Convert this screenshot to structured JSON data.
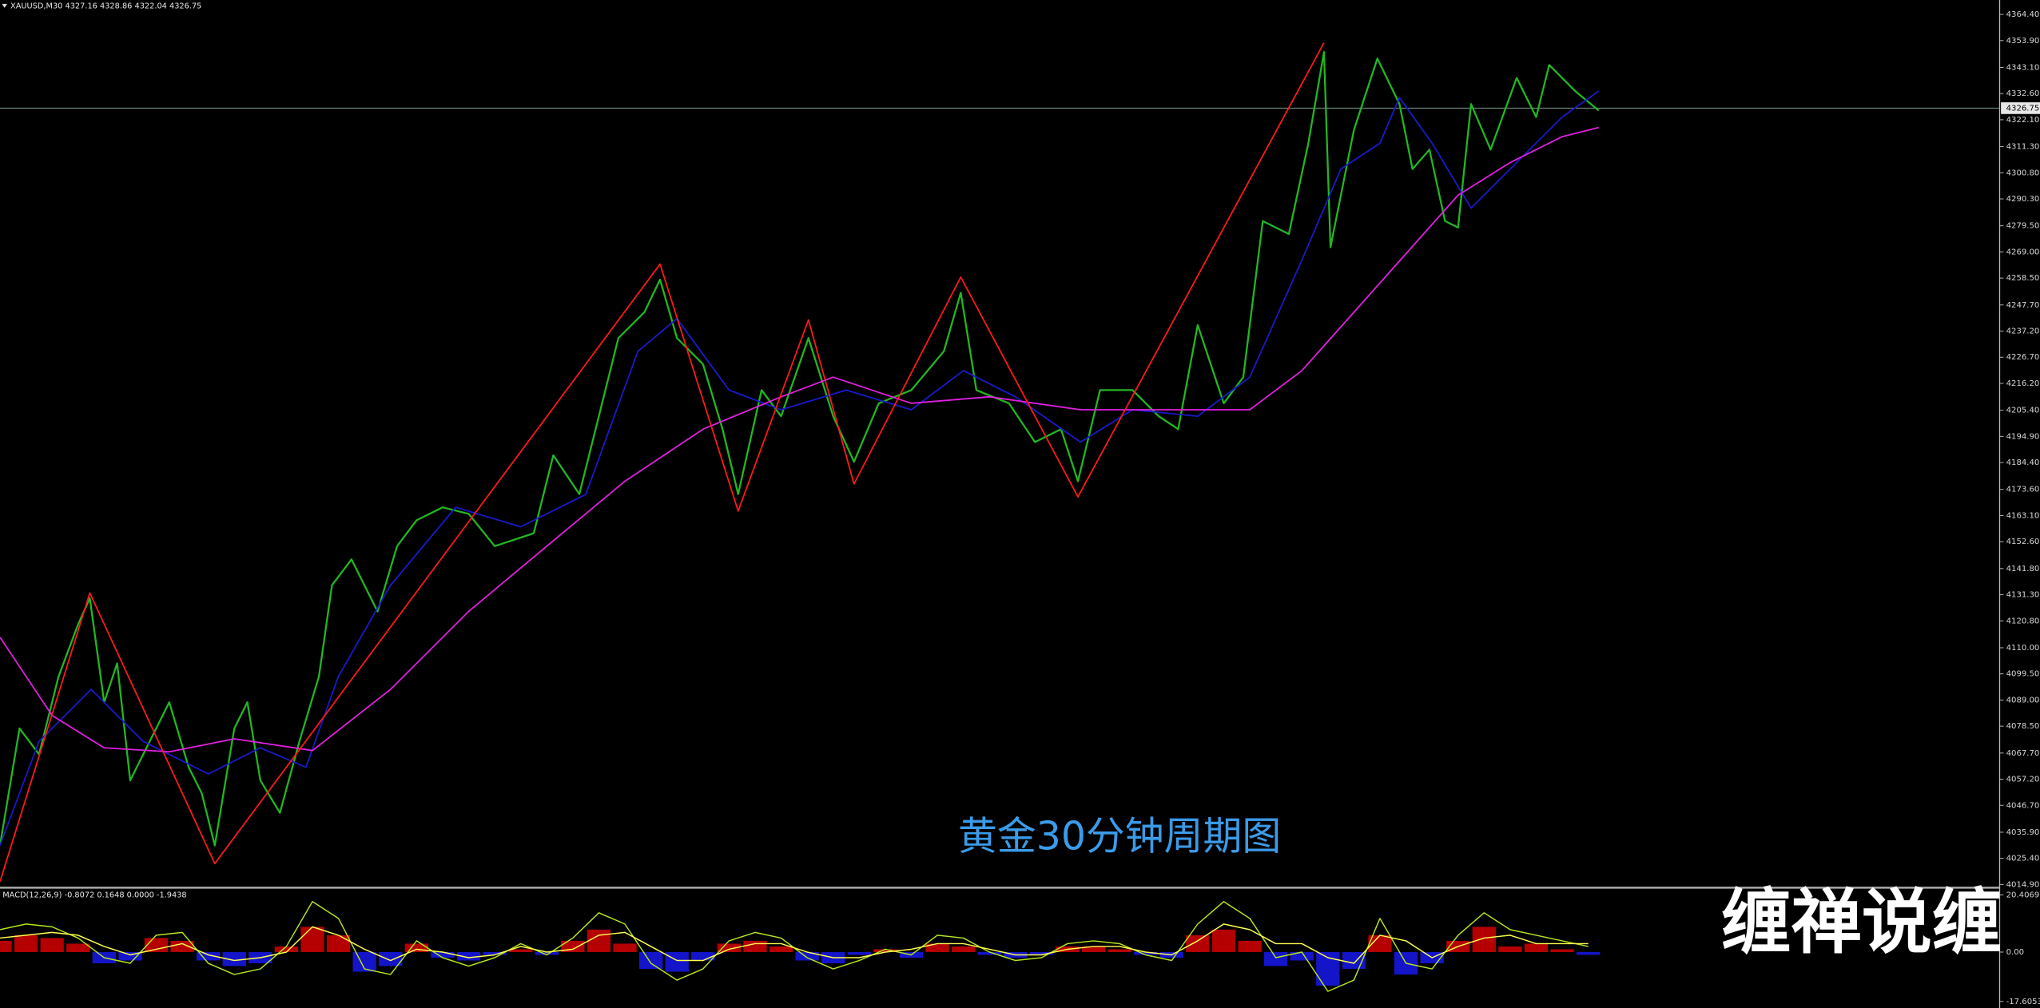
{
  "chart_data": [
    {
      "type": "line",
      "title": "XAUUSD,M30  4327.16 4328.86 4322.04 4326.75",
      "annotations": [
        "黄金30分钟周期图",
        "缠禅说缠"
      ],
      "last_price": 4326.75,
      "xlim": [
        0,
        1535
      ],
      "ylim": [
        4014.4,
        4370.2
      ],
      "yticks": [
        {
          "value": 4364.4,
          "label": "4364.40"
        },
        {
          "value": 4353.9,
          "label": "4353.90"
        },
        {
          "value": 4343.1,
          "label": "4343.10"
        },
        {
          "value": 4332.6,
          "label": "4332.60"
        },
        {
          "value": 4322.1,
          "label": "4322.10"
        },
        {
          "value": 4311.3,
          "label": "4311.30"
        },
        {
          "value": 4300.8,
          "label": "4300.80"
        },
        {
          "value": 4290.3,
          "label": "4290.30"
        },
        {
          "value": 4279.5,
          "label": "4279.50"
        },
        {
          "value": 4269,
          "label": "4269.00"
        },
        {
          "value": 4258.5,
          "label": "4258.50"
        },
        {
          "value": 4247.7,
          "label": "4247.70"
        },
        {
          "value": 4237.2,
          "label": "4237.20"
        },
        {
          "value": 4226.7,
          "label": "4226.70"
        },
        {
          "value": 4216.2,
          "label": "4216.20"
        },
        {
          "value": 4205.4,
          "label": "4205.40"
        },
        {
          "value": 4194.9,
          "label": "4194.90"
        },
        {
          "value": 4184.4,
          "label": "4184.40"
        },
        {
          "value": 4173.6,
          "label": "4173.60"
        },
        {
          "value": 4163.1,
          "label": "4163.10"
        },
        {
          "value": 4152.6,
          "label": "4152.60"
        },
        {
          "value": 4141.8,
          "label": "4141.80"
        },
        {
          "value": 4131.3,
          "label": "4131.30"
        },
        {
          "value": 4120.8,
          "label": "4120.80"
        },
        {
          "value": 4110,
          "label": "4110.00"
        },
        {
          "value": 4099.5,
          "label": "4099.50"
        },
        {
          "value": 4089,
          "label": "4089.00"
        },
        {
          "value": 4078.5,
          "label": "4078.50"
        },
        {
          "value": 4067.7,
          "label": "4067.70"
        },
        {
          "value": 4057.2,
          "label": "4057.20"
        },
        {
          "value": 4046.7,
          "label": "4046.70"
        },
        {
          "value": 4035.9,
          "label": "4035.90"
        },
        {
          "value": 4025.4,
          "label": "4025.40"
        },
        {
          "value": 4014.9,
          "label": "4014.90"
        }
      ],
      "series": [
        {
          "color": "#22b722",
          "x": [
            0,
            15,
            30,
            45,
            60,
            69,
            80,
            90,
            100,
            115,
            130,
            145,
            155,
            165,
            180,
            190,
            200,
            215,
            230,
            245,
            255,
            270,
            290,
            305,
            320,
            340,
            360,
            380,
            410,
            425,
            445,
            460,
            475,
            495,
            507,
            520,
            540,
            555,
            567,
            585,
            600,
            621,
            640,
            656,
            675,
            700,
            725,
            738,
            750,
            775,
            795,
            815,
            828,
            845,
            870,
            890,
            905,
            920,
            940,
            955,
            970,
            990,
            1005,
            1017,
            1022,
            1040,
            1058,
            1075,
            1085,
            1098,
            1110,
            1120,
            1130,
            1145,
            1165,
            1180,
            1190,
            1210,
            1228
          ],
          "values": [
            4030.6,
            4077.6,
            4067.2,
            4098.5,
            4119.4,
            4129.9,
            4088.1,
            4103.7,
            4056.7,
            4072.4,
            4088.1,
            4061.9,
            4051.5,
            4030.6,
            4077.6,
            4088.1,
            4056.7,
            4043.7,
            4072.4,
            4098.5,
            4135.1,
            4145.5,
            4124.6,
            4150.8,
            4161.2,
            4166.4,
            4163.8,
            4150.8,
            4156.0,
            4187.3,
            4171.7,
            4203.0,
            4234.4,
            4244.8,
            4257.9,
            4234.4,
            4223.9,
            4197.8,
            4171.7,
            4213.5,
            4203.0,
            4234.4,
            4203.0,
            4184.7,
            4208.2,
            4213.5,
            4229.1,
            4252.6,
            4213.5,
            4208.2,
            4192.6,
            4197.8,
            4176.9,
            4213.5,
            4213.5,
            4203.0,
            4197.8,
            4239.6,
            4208.2,
            4218.7,
            4281.4,
            4276.2,
            4312.7,
            4349.3,
            4270.9,
            4318.0,
            4346.7,
            4328.4,
            4302.3,
            4310.1,
            4281.4,
            4278.8,
            4328.4,
            4310.1,
            4338.9,
            4323.2,
            4344.1,
            4333.6,
            4325.8
          ]
        },
        {
          "color": "#1a1acc",
          "x": [
            0,
            30,
            70,
            110,
            160,
            200,
            235,
            260,
            300,
            350,
            400,
            450,
            490,
            520,
            560,
            600,
            650,
            700,
            740,
            780,
            830,
            870,
            920,
            960,
            1000,
            1030,
            1060,
            1075,
            1100,
            1130,
            1160,
            1200,
            1228
          ],
          "values": [
            4030.6,
            4072.4,
            4093.3,
            4072.4,
            4059.3,
            4069.8,
            4062.0,
            4098.5,
            4135.1,
            4166.4,
            4158.6,
            4171.6,
            4229.1,
            4242.2,
            4213.5,
            4205.6,
            4213.5,
            4205.6,
            4221.3,
            4210.8,
            4192.6,
            4205.6,
            4203.0,
            4218.7,
            4265.7,
            4302.3,
            4312.7,
            4331.0,
            4312.7,
            4286.6,
            4302.3,
            4323.2,
            4333.6
          ]
        },
        {
          "color": "#e020e0",
          "x": [
            0,
            40,
            80,
            130,
            180,
            240,
            300,
            360,
            420,
            480,
            540,
            600,
            640,
            700,
            760,
            830,
            900,
            960,
            1000,
            1040,
            1080,
            1120,
            1160,
            1200,
            1228
          ],
          "values": [
            4114.2,
            4082.8,
            4069.8,
            4068.2,
            4073.4,
            4068.7,
            4093.3,
            4124.6,
            4150.8,
            4176.9,
            4197.8,
            4210.8,
            4218.7,
            4208.2,
            4210.8,
            4205.6,
            4205.6,
            4205.6,
            4221.3,
            4244.8,
            4268.3,
            4291.8,
            4304.9,
            4315.3,
            4319.0
          ]
        },
        {
          "color": "#ff1a1a",
          "x": [
            0,
            69,
            165,
            507,
            567,
            621,
            656,
            738,
            828,
            1017
          ],
          "values": [
            4016.0,
            4132.0,
            4023.3,
            4264.1,
            4164.9,
            4241.7,
            4175.8,
            4258.9,
            4170.6,
            4353.0
          ]
        }
      ]
    },
    {
      "type": "macd",
      "title": "MACD(12,26,9) -0.8072 0.1648 0.0000 -1.9438",
      "xlim": [
        0,
        1535
      ],
      "ylim": [
        -19.48,
        22.26
      ],
      "yticks": [
        20.4069,
        {
          "value": 0,
          "label": "0.00"
        },
        -17.6053
      ],
      "x": [
        0,
        20,
        40,
        60,
        80,
        100,
        120,
        140,
        160,
        180,
        200,
        220,
        240,
        260,
        280,
        300,
        320,
        340,
        360,
        380,
        400,
        420,
        440,
        460,
        480,
        500,
        520,
        540,
        560,
        580,
        600,
        620,
        640,
        660,
        680,
        700,
        720,
        740,
        760,
        780,
        800,
        820,
        840,
        860,
        880,
        900,
        920,
        940,
        960,
        980,
        1000,
        1020,
        1040,
        1060,
        1080,
        1100,
        1120,
        1140,
        1160,
        1180,
        1200,
        1220
      ],
      "series": [
        {
          "type": "bar",
          "color": "#b40000",
          "negative_color": "#1414c8",
          "values": [
            4,
            6,
            5,
            3,
            -4,
            -3,
            5,
            4,
            -3,
            -5,
            -4,
            2,
            9,
            6,
            -7,
            -5,
            3,
            -2,
            -3,
            -1,
            1,
            -1,
            4,
            8,
            3,
            -6,
            -7,
            -3,
            3,
            4,
            2,
            -3,
            -4,
            -1,
            1,
            -2,
            3,
            2,
            -1,
            -2,
            -1,
            2,
            2,
            1,
            -1,
            -2,
            6,
            8,
            4,
            -5,
            -3,
            -12,
            -6,
            6,
            -8,
            -4,
            4,
            9,
            2,
            3,
            1,
            -1
          ]
        },
        {
          "type": "line",
          "color": "#b4e61e",
          "values": [
            8,
            10,
            9,
            5,
            -2,
            -4,
            6,
            7,
            -4,
            -8,
            -6,
            2,
            18,
            12,
            -6,
            -8,
            4,
            -2,
            -5,
            -2,
            3,
            -1,
            5,
            14,
            10,
            -4,
            -10,
            -6,
            4,
            7,
            5,
            -2,
            -6,
            -3,
            1,
            -1,
            6,
            5,
            0,
            -3,
            -2,
            3,
            4,
            3,
            -1,
            -3,
            10,
            18,
            12,
            -2,
            0,
            -14,
            -10,
            12,
            -4,
            -6,
            6,
            14,
            8,
            6,
            4,
            2
          ]
        },
        {
          "type": "line",
          "color": "#ffff50",
          "values": [
            5,
            6,
            7,
            6,
            2,
            -1,
            1,
            3,
            -1,
            -3,
            -2,
            0,
            9,
            6,
            1,
            -3,
            1,
            0,
            -2,
            -1,
            2,
            0,
            1,
            6,
            7,
            2,
            -3,
            -3,
            1,
            3,
            3,
            0,
            -2,
            -2,
            0,
            1,
            3,
            3,
            1,
            -1,
            -1,
            1,
            2,
            2,
            0,
            -1,
            4,
            10,
            8,
            3,
            3,
            -2,
            -4,
            6,
            4,
            -2,
            2,
            5,
            6,
            3,
            3,
            3
          ]
        }
      ]
    }
  ]
}
